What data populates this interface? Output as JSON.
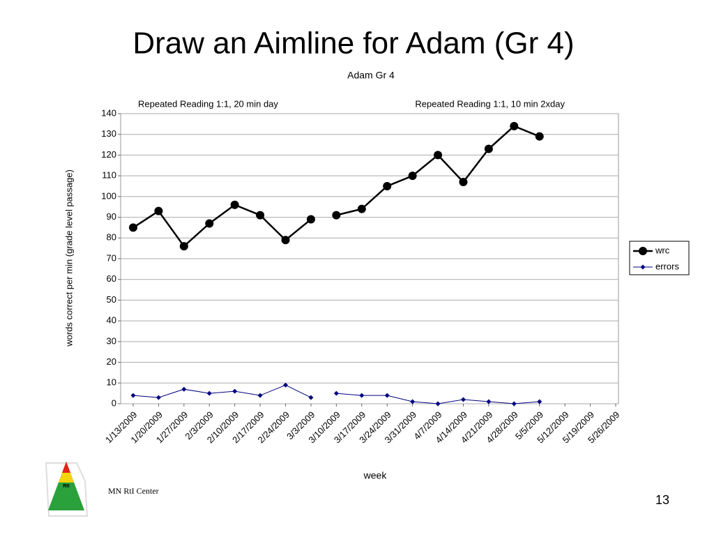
{
  "slide": {
    "title": "Draw an Aimline for Adam (Gr 4)",
    "footer": "MN RtI Center",
    "page_number": "13",
    "logo_text": "RtI"
  },
  "chart_data": {
    "type": "line",
    "title": "Adam Gr 4",
    "phases": [
      {
        "label": "Repeated Reading 1:1, 20 min day",
        "start": 0
      },
      {
        "label": "Repeated Reading 1:1, 10 min 2xday",
        "start": 8
      }
    ],
    "x_label": "week",
    "y_label": "words correct per min (grade level passage)",
    "categories": [
      "1/13/2009",
      "1/20/2009",
      "1/27/2009",
      "2/3/2009",
      "2/10/2009",
      "2/17/2009",
      "2/24/2009",
      "3/3/2009",
      "3/10/2009",
      "3/17/2009",
      "3/24/2009",
      "3/31/2009",
      "4/7/2009",
      "4/14/2009",
      "4/21/2009",
      "4/28/2009",
      "5/5/2009",
      "5/12/2009",
      "5/19/2009",
      "5/26/2009"
    ],
    "series": [
      {
        "name": "wrc",
        "color": "#000000",
        "marker": "circle",
        "values": [
          85,
          93,
          76,
          87,
          96,
          91,
          79,
          89,
          91,
          94,
          105,
          110,
          120,
          107,
          123,
          134,
          129,
          null,
          null,
          null
        ]
      },
      {
        "name": "errors",
        "color": "#000080",
        "marker": "diamond",
        "values": [
          4,
          3,
          7,
          5,
          6,
          4,
          9,
          3,
          5,
          4,
          4,
          1,
          0,
          2,
          1,
          0,
          1,
          null,
          null,
          null
        ]
      }
    ],
    "ylim": [
      0,
      140
    ],
    "yticks": [
      0,
      10,
      20,
      30,
      40,
      50,
      60,
      70,
      80,
      90,
      100,
      110,
      120,
      130,
      140
    ],
    "grid": true,
    "legend": "right"
  }
}
